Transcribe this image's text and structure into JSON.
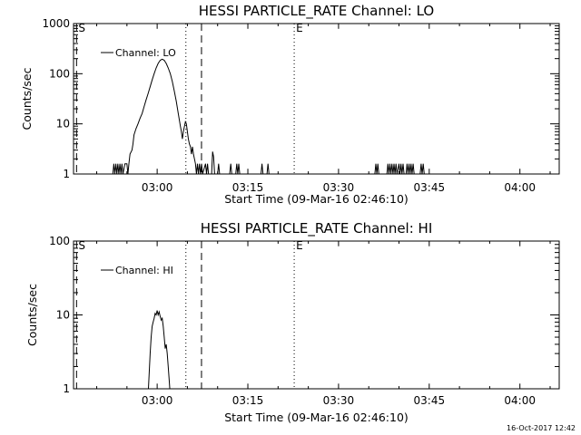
{
  "timestamp": "16-Oct-2017 12:42",
  "colors": {
    "line": "#000000",
    "background": "#ffffff"
  },
  "chart_data": [
    {
      "type": "line",
      "title": "HESSI PARTICLE_RATE Channel: LO",
      "xlabel": "Start Time (09-Mar-16 02:46:10)",
      "ylabel": "Counts/sec",
      "yscale": "log",
      "ylim": [
        1,
        1000
      ],
      "xlim": [
        "02:46:10",
        "04:06:30"
      ],
      "yticks": [
        {
          "value": 1,
          "label": "1"
        },
        {
          "value": 10,
          "label": "10"
        },
        {
          "value": 100,
          "label": "100"
        },
        {
          "value": 1000,
          "label": "1000"
        }
      ],
      "xticks": [
        {
          "value": "03:00",
          "label": "03:00"
        },
        {
          "value": "03:15",
          "label": "03:15"
        },
        {
          "value": "03:30",
          "label": "03:30"
        },
        {
          "value": "03:45",
          "label": "03:45"
        },
        {
          "value": "04:00",
          "label": "04:00"
        }
      ],
      "legend": {
        "position": "top-left",
        "entries": [
          "Channel: LO"
        ]
      },
      "vlines": [
        {
          "time": "02:46:40",
          "style": "dashed",
          "label": "S"
        },
        {
          "time": "03:04:45",
          "style": "dotted",
          "label": ""
        },
        {
          "time": "03:07:20",
          "style": "dashed",
          "label": ""
        },
        {
          "time": "03:22:40",
          "style": "dotted",
          "label": "E"
        }
      ],
      "series": [
        {
          "name": "Channel: LO",
          "points": [
            [
              "02:52:40",
              1
            ],
            [
              "02:52:50",
              1.6
            ],
            [
              "02:53:00",
              1
            ],
            [
              "02:53:10",
              1.6
            ],
            [
              "02:53:20",
              1
            ],
            [
              "02:53:30",
              1.6
            ],
            [
              "02:53:40",
              1
            ],
            [
              "02:53:50",
              1.6
            ],
            [
              "02:54:00",
              1
            ],
            [
              "02:54:10",
              1.6
            ],
            [
              "02:54:20",
              1
            ],
            [
              "02:54:40",
              1.6
            ],
            [
              "02:55:00",
              1.6
            ],
            [
              "02:55:10",
              1
            ],
            [
              "02:55:20",
              1.6
            ],
            [
              "02:55:30",
              2.5
            ],
            [
              "02:55:50",
              3
            ],
            [
              "02:56:00",
              4
            ],
            [
              "02:56:10",
              6
            ],
            [
              "02:56:30",
              8
            ],
            [
              "02:56:50",
              10
            ],
            [
              "02:57:10",
              13
            ],
            [
              "02:57:30",
              16
            ],
            [
              "02:57:50",
              22
            ],
            [
              "02:58:10",
              30
            ],
            [
              "02:58:30",
              40
            ],
            [
              "02:58:50",
              55
            ],
            [
              "02:59:10",
              75
            ],
            [
              "02:59:30",
              100
            ],
            [
              "02:59:50",
              130
            ],
            [
              "03:00:10",
              160
            ],
            [
              "03:00:30",
              185
            ],
            [
              "03:00:50",
              195
            ],
            [
              "03:01:10",
              185
            ],
            [
              "03:01:30",
              160
            ],
            [
              "03:01:50",
              130
            ],
            [
              "03:02:10",
              100
            ],
            [
              "03:02:30",
              70
            ],
            [
              "03:02:50",
              45
            ],
            [
              "03:03:10",
              28
            ],
            [
              "03:03:30",
              16
            ],
            [
              "03:03:50",
              9
            ],
            [
              "03:04:00",
              7
            ],
            [
              "03:04:10",
              5
            ],
            [
              "03:04:20",
              7
            ],
            [
              "03:04:40",
              11
            ],
            [
              "03:04:50",
              10
            ],
            [
              "03:05:00",
              7
            ],
            [
              "03:05:10",
              5
            ],
            [
              "03:05:20",
              4
            ],
            [
              "03:05:30",
              3.5
            ],
            [
              "03:05:40",
              2.5
            ],
            [
              "03:05:50",
              3.5
            ],
            [
              "03:06:00",
              2.5
            ],
            [
              "03:06:10",
              2
            ],
            [
              "03:06:20",
              1.6
            ],
            [
              "03:06:30",
              1
            ],
            [
              "03:06:40",
              1.6
            ],
            [
              "03:06:50",
              1
            ],
            [
              "03:07:00",
              1.6
            ],
            [
              "03:07:10",
              1
            ],
            [
              "03:07:20",
              1.6
            ],
            [
              "03:07:30",
              1
            ],
            [
              "03:08:00",
              1.6
            ],
            [
              "03:08:10",
              1
            ],
            [
              "03:08:20",
              1.6
            ],
            [
              "03:08:30",
              1
            ],
            [
              "03:09:00",
              1
            ],
            [
              "03:09:10",
              2.8
            ],
            [
              "03:09:20",
              2.2
            ],
            [
              "03:09:30",
              1
            ],
            [
              "03:10:00",
              1
            ],
            [
              "03:10:10",
              1.6
            ],
            [
              "03:10:20",
              1
            ],
            [
              "03:12:00",
              1
            ],
            [
              "03:12:10",
              1.6
            ],
            [
              "03:12:20",
              1
            ],
            [
              "03:13:00",
              1
            ],
            [
              "03:13:10",
              1.6
            ],
            [
              "03:13:20",
              1
            ],
            [
              "03:13:30",
              1.6
            ],
            [
              "03:13:40",
              1
            ],
            [
              "03:17:10",
              1
            ],
            [
              "03:17:20",
              1.6
            ],
            [
              "03:17:30",
              1
            ],
            [
              "03:18:10",
              1
            ],
            [
              "03:18:20",
              1.6
            ],
            [
              "03:18:30",
              1
            ],
            [
              "03:36:00",
              1
            ],
            [
              "03:36:10",
              1.6
            ],
            [
              "03:36:20",
              1
            ],
            [
              "03:36:30",
              1.6
            ],
            [
              "03:36:40",
              1
            ],
            [
              "03:38:00",
              1
            ],
            [
              "03:38:10",
              1.6
            ],
            [
              "03:38:20",
              1
            ],
            [
              "03:38:30",
              1.6
            ],
            [
              "03:38:40",
              1
            ],
            [
              "03:38:50",
              1.6
            ],
            [
              "03:39:00",
              1
            ],
            [
              "03:39:10",
              1.6
            ],
            [
              "03:39:20",
              1
            ],
            [
              "03:39:30",
              1.6
            ],
            [
              "03:39:40",
              1
            ],
            [
              "03:40:00",
              1.6
            ],
            [
              "03:40:10",
              1
            ],
            [
              "03:40:20",
              1.6
            ],
            [
              "03:40:30",
              1
            ],
            [
              "03:40:40",
              1.6
            ],
            [
              "03:40:50",
              1
            ],
            [
              "03:41:10",
              1
            ],
            [
              "03:41:20",
              1.6
            ],
            [
              "03:41:30",
              1
            ],
            [
              "03:41:40",
              1.6
            ],
            [
              "03:41:50",
              1
            ],
            [
              "03:42:00",
              1.6
            ],
            [
              "03:42:10",
              1
            ],
            [
              "03:42:20",
              1.6
            ],
            [
              "03:42:30",
              1
            ],
            [
              "03:43:30",
              1
            ],
            [
              "03:43:40",
              1.6
            ],
            [
              "03:43:50",
              1
            ],
            [
              "03:44:00",
              1.6
            ],
            [
              "03:44:10",
              1
            ]
          ]
        }
      ]
    },
    {
      "type": "line",
      "title": "HESSI PARTICLE_RATE Channel: HI",
      "xlabel": "Start Time (09-Mar-16 02:46:10)",
      "ylabel": "Counts/sec",
      "yscale": "log",
      "ylim": [
        1,
        100
      ],
      "xlim": [
        "02:46:10",
        "04:06:30"
      ],
      "yticks": [
        {
          "value": 1,
          "label": "1"
        },
        {
          "value": 10,
          "label": "10"
        },
        {
          "value": 100,
          "label": "100"
        }
      ],
      "xticks": [
        {
          "value": "03:00",
          "label": "03:00"
        },
        {
          "value": "03:15",
          "label": "03:15"
        },
        {
          "value": "03:30",
          "label": "03:30"
        },
        {
          "value": "03:45",
          "label": "03:45"
        },
        {
          "value": "04:00",
          "label": "04:00"
        }
      ],
      "legend": {
        "position": "top-left",
        "entries": [
          "Channel: HI"
        ]
      },
      "vlines": [
        {
          "time": "02:46:40",
          "style": "dashed",
          "label": "S"
        },
        {
          "time": "03:04:45",
          "style": "dotted",
          "label": ""
        },
        {
          "time": "03:07:20",
          "style": "dashed",
          "label": ""
        },
        {
          "time": "03:22:40",
          "style": "dotted",
          "label": "E"
        }
      ],
      "series": [
        {
          "name": "Channel: HI",
          "points": [
            [
              "02:58:30",
              0.8
            ],
            [
              "02:58:40",
              1.5
            ],
            [
              "02:58:50",
              3
            ],
            [
              "02:59:00",
              5
            ],
            [
              "02:59:10",
              7
            ],
            [
              "02:59:20",
              8
            ],
            [
              "02:59:30",
              9
            ],
            [
              "02:59:40",
              10.5
            ],
            [
              "02:59:50",
              10
            ],
            [
              "03:00:00",
              11.5
            ],
            [
              "03:00:10",
              10
            ],
            [
              "03:00:20",
              11
            ],
            [
              "03:00:30",
              9.5
            ],
            [
              "03:00:40",
              8.5
            ],
            [
              "03:00:50",
              9
            ],
            [
              "03:01:00",
              7
            ],
            [
              "03:01:10",
              5
            ],
            [
              "03:01:20",
              3.5
            ],
            [
              "03:01:30",
              4
            ],
            [
              "03:01:40",
              3
            ],
            [
              "03:01:50",
              2
            ],
            [
              "03:02:00",
              1.3
            ],
            [
              "03:02:10",
              0.8
            ]
          ]
        }
      ]
    }
  ]
}
